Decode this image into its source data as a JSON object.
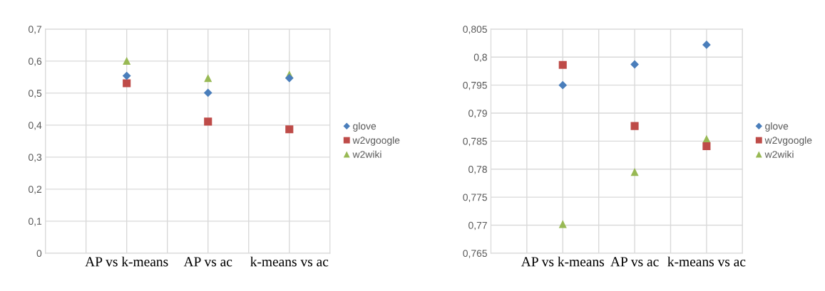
{
  "chart_data": [
    {
      "type": "scatter",
      "categories": [
        "AP vs k-means",
        "AP vs ac",
        "k-means vs ac"
      ],
      "series": [
        {
          "name": "glove",
          "color": "#4a7ebb",
          "marker": "diamond",
          "values": [
            0.554,
            0.501,
            0.547
          ]
        },
        {
          "name": "w2vgoogle",
          "color": "#be4b48",
          "marker": "square",
          "values": [
            0.531,
            0.411,
            0.387
          ]
        },
        {
          "name": "w2wiki",
          "color": "#98b954",
          "marker": "triangle",
          "values": [
            0.601,
            0.547,
            0.558
          ]
        }
      ],
      "ylim": [
        0,
        0.7
      ],
      "yticks": [
        0,
        {
          "value": 0.1,
          "label": "0,1"
        },
        {
          "value": 0.2,
          "label": "0,2"
        },
        {
          "value": 0.3,
          "label": "0,3"
        },
        {
          "value": 0.4,
          "label": "0,4"
        },
        {
          "value": 0.5,
          "label": "0,5"
        },
        {
          "value": 0.6,
          "label": "0,6"
        },
        {
          "value": 0.7,
          "label": "0,7"
        }
      ],
      "grid": true,
      "legend": "right"
    },
    {
      "type": "scatter",
      "categories": [
        "AP vs k-means",
        "AP vs ac",
        "k-means vs ac"
      ],
      "series": [
        {
          "name": "glove",
          "color": "#4a7ebb",
          "marker": "diamond",
          "values": [
            0.795,
            0.7987,
            0.8022
          ]
        },
        {
          "name": "w2vgoogle",
          "color": "#be4b48",
          "marker": "square",
          "values": [
            0.7986,
            0.7877,
            0.7841
          ]
        },
        {
          "name": "w2wiki",
          "color": "#98b954",
          "marker": "triangle",
          "values": [
            0.7702,
            0.7795,
            0.7854
          ]
        }
      ],
      "ylim": [
        0.765,
        0.805
      ],
      "yticks": [
        {
          "value": 0.765,
          "label": "0,765"
        },
        {
          "value": 0.77,
          "label": "0,77"
        },
        {
          "value": 0.775,
          "label": "0,775"
        },
        {
          "value": 0.78,
          "label": "0,78"
        },
        {
          "value": 0.785,
          "label": "0,785"
        },
        {
          "value": 0.79,
          "label": "0,79"
        },
        {
          "value": 0.795,
          "label": "0,795"
        },
        {
          "value": 0.8,
          "label": "0,8"
        },
        {
          "value": 0.805,
          "label": "0,805"
        }
      ],
      "grid": true,
      "legend": "right"
    }
  ]
}
